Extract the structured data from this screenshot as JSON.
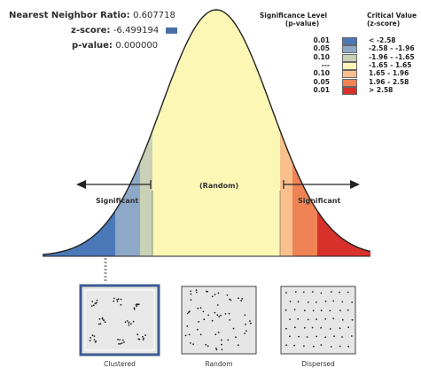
{
  "report": {
    "ratio_label": "Nearest Neighbor Ratio:",
    "ratio_value": "0.607718",
    "zscore_label": "z-score:",
    "zscore_value": "-6.499194",
    "pvalue_label": "p-value:",
    "pvalue_value": "0.000000"
  },
  "legend": {
    "sig_header_line1": "Significance Level",
    "sig_header_line2": "(p-value)",
    "crit_header_line1": "Critical Value",
    "crit_header_line2": "(z-score)",
    "rows": [
      {
        "p": "0.01",
        "z": "< -2.58",
        "color": "#4a78b8"
      },
      {
        "p": "0.05",
        "z": "-2.58 - -1.96",
        "color": "#8ea8c8"
      },
      {
        "p": "0.10",
        "z": "-1.96 - -1.65",
        "color": "#c9d1b6"
      },
      {
        "p": "---",
        "z": "-1.65 - 1.65",
        "color": "#fdf7b6"
      },
      {
        "p": "0.10",
        "z": "1.65 - 1.96",
        "color": "#f9c08d"
      },
      {
        "p": "0.05",
        "z": "1.96 - 2.58",
        "color": "#ef8355"
      },
      {
        "p": "0.01",
        "z": "> 2.58",
        "color": "#d8302a"
      }
    ]
  },
  "curve": {
    "random_label": "(Random)",
    "left_label": "Significant",
    "right_label": "Significant"
  },
  "thumbnails": [
    {
      "label": "Clustered",
      "selected": true
    },
    {
      "label": "Random",
      "selected": false
    },
    {
      "label": "Dispersed",
      "selected": false
    }
  ],
  "colors": {
    "outline": "#222222",
    "marker_blue": "#4a6fa5",
    "thumb_bg": "#e6e6e6",
    "selected_border": "#3b5b8f"
  }
}
